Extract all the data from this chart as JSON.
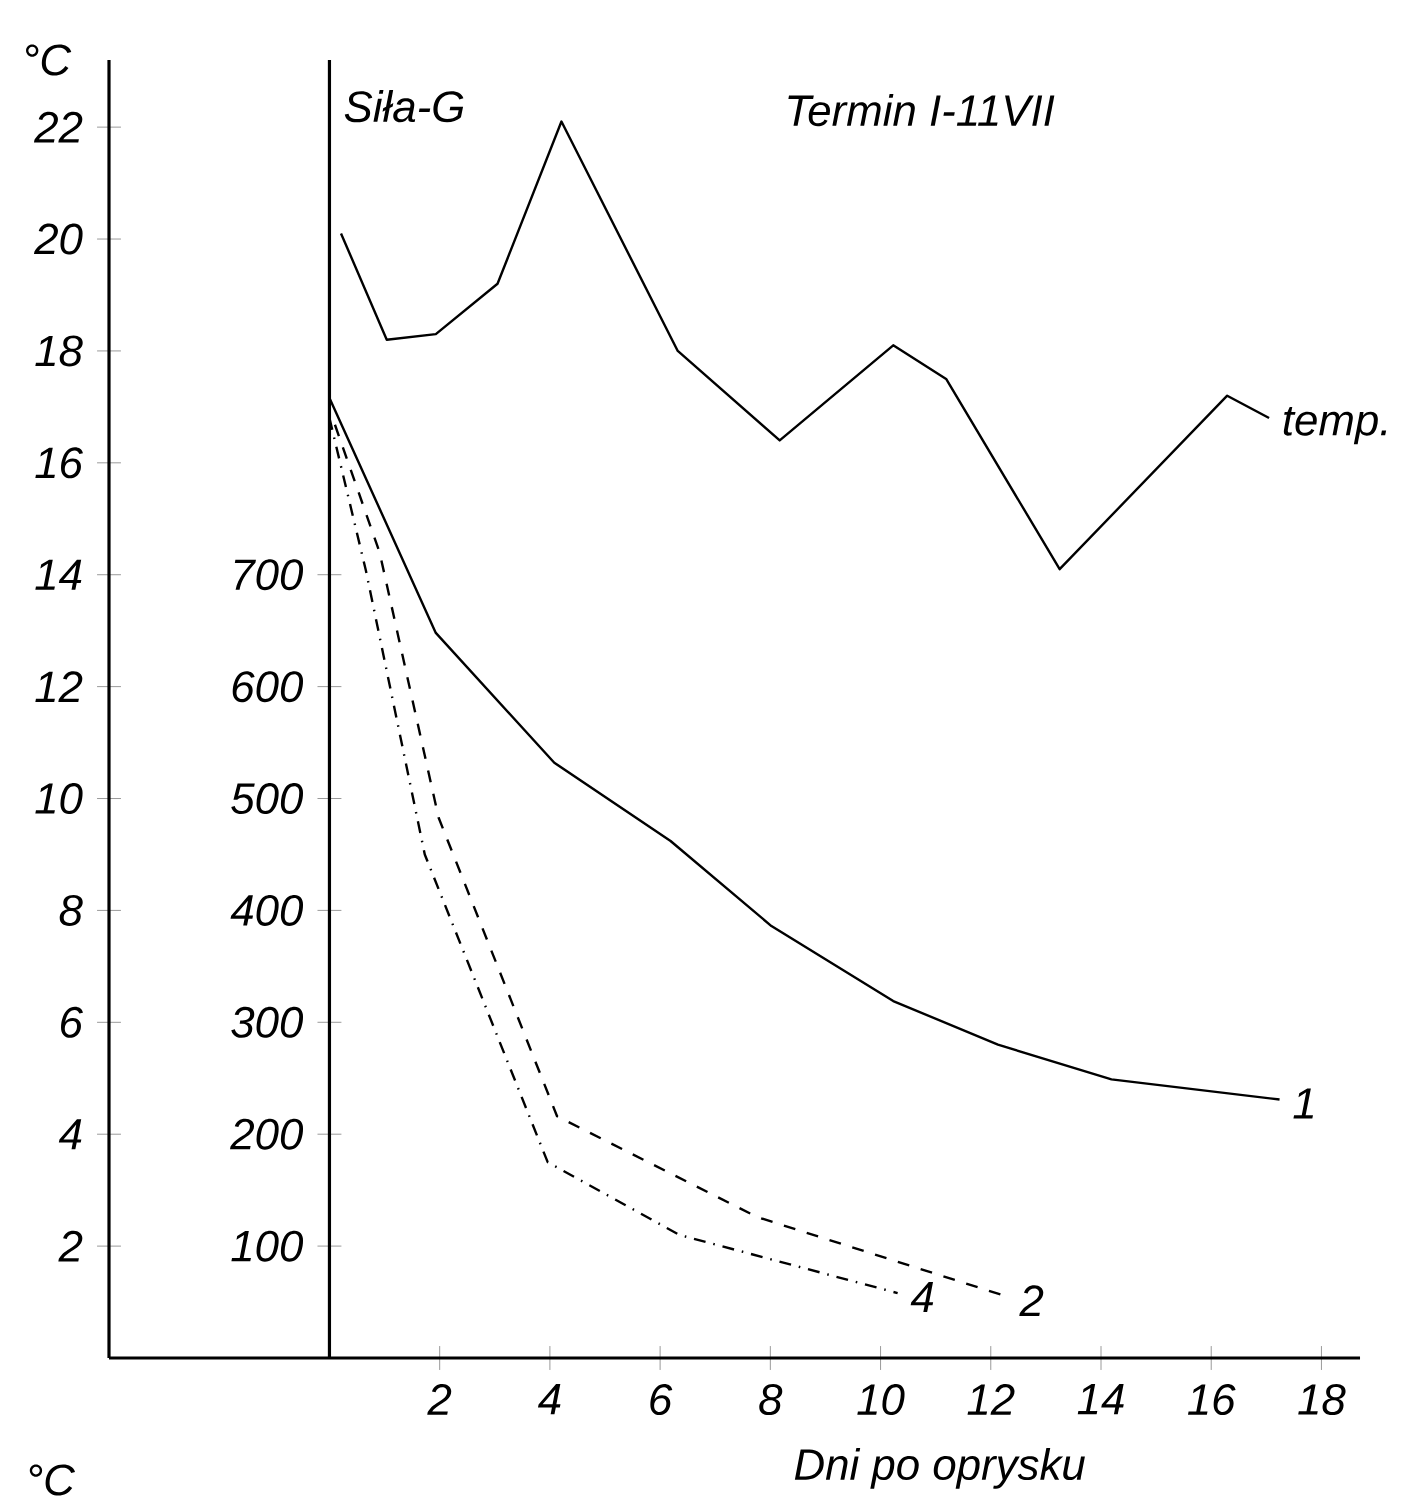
{
  "chart_data": {
    "type": "line",
    "title": "Termin I-11VII",
    "xlabel": "Dni po oprysku",
    "ylabel": "°C",
    "y2label": "Siła-G",
    "xlim": [
      -4,
      18.7
    ],
    "xticks": [
      2,
      4,
      6,
      8,
      10,
      12,
      14,
      16,
      18
    ],
    "ylim": [
      0,
      23.2
    ],
    "yticks": [
      2,
      4,
      6,
      8,
      10,
      12,
      14,
      16,
      18,
      20,
      22
    ],
    "y2lim": [
      0,
      1160
    ],
    "y2ticks": [
      100,
      200,
      300,
      400,
      500,
      600,
      700
    ],
    "marker": "none",
    "annotations": [
      "°C"
    ],
    "series": [
      {
        "name": "temp.",
        "color": "#000000",
        "line_style": "solid",
        "x": [
          0.21,
          1.04,
          1.93,
          3.05,
          4.21,
          6.32,
          8.17,
          10.23,
          11.19,
          13.25,
          16.29,
          17.05
        ],
        "values": [
          20.1,
          18.2,
          18.3,
          19.2,
          22.1,
          18.0,
          16.4,
          18.1,
          17.5,
          14.1,
          17.2,
          16.8
        ]
      },
      {
        "name": "1",
        "color": "#000000",
        "axis": "y2",
        "line_style": "solid",
        "x": [
          0,
          1.93,
          4.08,
          6.19,
          8.02,
          10.23,
          12.13,
          14.19,
          17.24
        ],
        "values": [
          858,
          648,
          532,
          462,
          386,
          319,
          280,
          249,
          231
        ]
      },
      {
        "name": "2",
        "color": "#000000",
        "axis": "y2",
        "line_style": "dashed",
        "x": [
          0.1,
          0.91,
          1.98,
          4.13,
          7.76,
          12.29
        ],
        "values": [
          834,
          720,
          483,
          216,
          126,
          55
        ]
      },
      {
        "name": "4",
        "color": "#000000",
        "axis": "y2",
        "line_style": "dashdot",
        "x": [
          0,
          0.66,
          1.73,
          3.96,
          6.35,
          10.31
        ],
        "values": [
          840,
          704,
          450,
          175,
          110,
          58
        ]
      }
    ]
  }
}
